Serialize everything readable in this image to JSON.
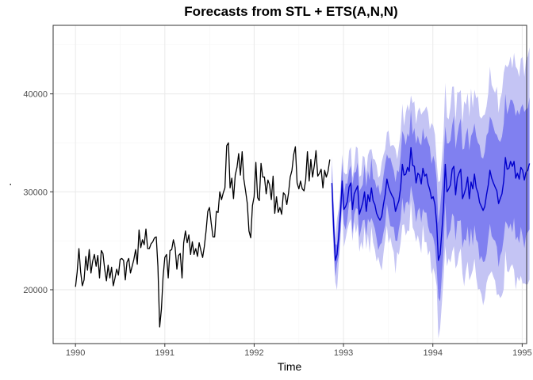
{
  "chart_data": {
    "type": "line",
    "title": "Forecasts from STL +  ETS(A,N,N)",
    "xlabel": "Time",
    "ylabel": ".",
    "xlim": [
      1989.75,
      1995.05
    ],
    "ylim": [
      14500,
      47000
    ],
    "grid": true,
    "x_ticks": [
      1990,
      1991,
      1992,
      1993,
      1994,
      1995
    ],
    "y_ticks": [
      20000,
      30000,
      40000
    ],
    "colors": {
      "history": "#000000",
      "forecast": "#0000cc",
      "band80": "#8080f0",
      "band95": "#c4c4f4",
      "grid_major": "#ebebeb",
      "grid_minor": "#f5f5f5",
      "panel_border": "#333333"
    },
    "history": {
      "start": 1990,
      "frequency": 52,
      "values": [
        20300,
        21800,
        24200,
        21800,
        20400,
        21000,
        23400,
        22000,
        24100,
        21700,
        22900,
        23600,
        22400,
        23500,
        21200,
        24000,
        23700,
        22100,
        20900,
        22500,
        21200,
        22300,
        20400,
        21200,
        22100,
        21500,
        23100,
        23200,
        23000,
        21000,
        22800,
        23200,
        21700,
        22400,
        23100,
        24100,
        22600,
        26100,
        24300,
        25100,
        24600,
        26200,
        24200,
        24200,
        24700,
        24900,
        25300,
        25400,
        22400,
        16200,
        18000,
        21300,
        23300,
        23600,
        21200,
        24000,
        24100,
        25100,
        24300,
        22100,
        23500,
        23700,
        21200,
        24800,
        26000,
        24800,
        25600,
        23600,
        24900,
        23600,
        24200,
        23400,
        24800,
        24000,
        23300,
        24400,
        26000,
        28000,
        28400,
        26800,
        25400,
        25400,
        28000,
        27900,
        30000,
        29200,
        29900,
        30400,
        34700,
        35000,
        30400,
        31400,
        29300,
        31700,
        32500,
        33900,
        31700,
        34100,
        31300,
        30100,
        28800,
        26000,
        25300,
        28600,
        29500,
        33000,
        29400,
        29100,
        32900,
        31500,
        31500,
        29800,
        31200,
        30700,
        29200,
        31600,
        27800,
        29500,
        27900,
        28400,
        27700,
        29900,
        29700,
        28700,
        29900,
        31500,
        32200,
        33800,
        34600,
        30900,
        30300,
        31100,
        30300,
        30100,
        31200,
        34100,
        31100,
        33300,
        31500,
        32700,
        34200,
        31600,
        31900,
        32300,
        30400,
        32200,
        31500,
        32100,
        33300
      ]
    },
    "forecast": {
      "start": 1992.87,
      "frequency": 52,
      "values": [
        30900,
        26500,
        23000,
        23600,
        25500,
        27800,
        31100,
        28200,
        28500,
        29000,
        30500,
        30900,
        28200,
        29800,
        30200,
        30600,
        27700,
        28300,
        28900,
        30000,
        28000,
        29700,
        29000,
        30400,
        29100,
        28700,
        27800,
        27400,
        27100,
        27500,
        28700,
        29700,
        31300,
        30500,
        30000,
        29600,
        29300,
        28000,
        28600,
        29100,
        30400,
        32800,
        31700,
        31800,
        32500,
        32100,
        34500,
        32700,
        32600,
        30900,
        31900,
        31700,
        30800,
        32400,
        31600,
        31800,
        30800,
        30200,
        29300,
        29500,
        28700,
        26700,
        23000,
        23600,
        26000,
        28500,
        32800,
        30000,
        30300,
        30700,
        32300,
        32600,
        29700,
        31400,
        31900,
        32300,
        29300,
        29800,
        30400,
        31500,
        29300,
        31000,
        30300,
        31800,
        30400,
        29900,
        28900,
        28500,
        28100,
        28500,
        29700,
        30700,
        32200,
        31400,
        30900,
        30500,
        30100,
        28800,
        29300,
        29800,
        31100,
        33500,
        32300,
        32400,
        33100,
        32600,
        33100,
        31400,
        31900,
        31300,
        32500,
        32200,
        31200,
        32000,
        32200,
        32900
      ]
    }
  }
}
